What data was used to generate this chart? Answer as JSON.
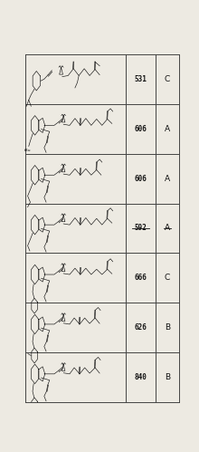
{
  "rows": [
    {
      "number": "531",
      "grade": "C",
      "strikethrough": false
    },
    {
      "number": "606",
      "grade": "A",
      "strikethrough": false
    },
    {
      "number": "606",
      "grade": "A",
      "strikethrough": false
    },
    {
      "number": "592",
      "grade": "A",
      "strikethrough": true
    },
    {
      "number": "666",
      "grade": "C",
      "strikethrough": false
    },
    {
      "number": "626",
      "grade": "B",
      "strikethrough": false
    },
    {
      "number": "840",
      "grade": "B",
      "strikethrough": false
    }
  ],
  "col_splits": [
    0.655,
    0.845
  ],
  "bg_color": "#edeae2",
  "border_color": "#444444",
  "text_color": "#111111",
  "figure_width": 2.2,
  "figure_height": 4.99,
  "dpi": 100,
  "num_fontsize": 5.5,
  "grade_fontsize": 6.5
}
